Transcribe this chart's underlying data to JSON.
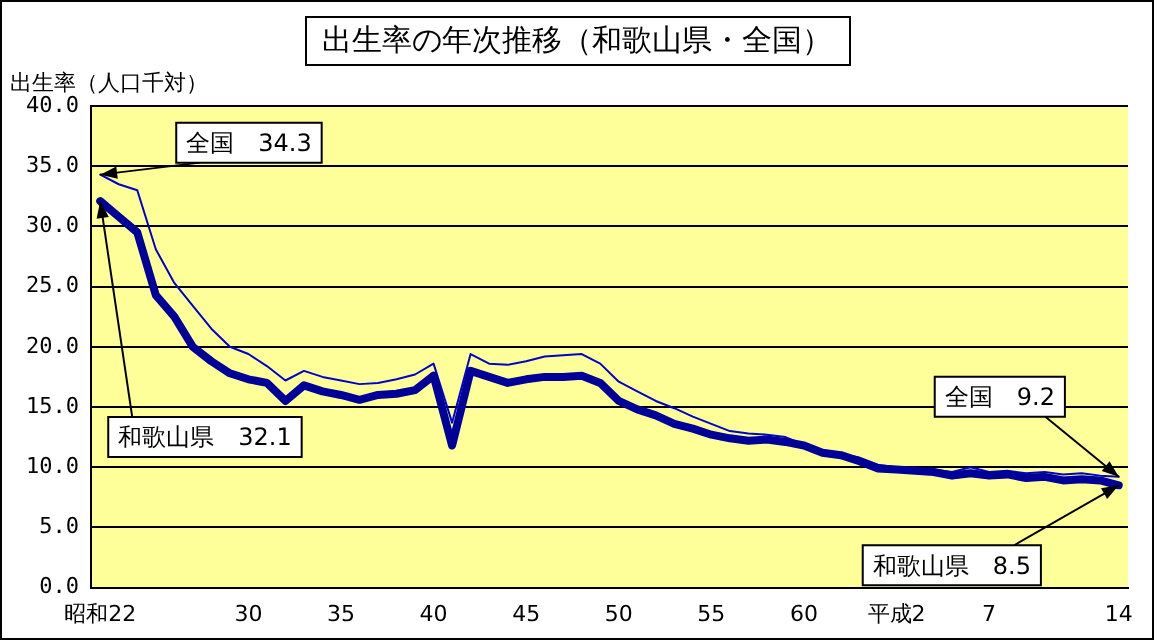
{
  "chart_data": {
    "type": "line",
    "title": "出生率の年次推移（和歌山県・全国）",
    "ylabel": "出生率（人口千対）",
    "categories": [
      "昭和22",
      null,
      null,
      null,
      null,
      null,
      null,
      null,
      "30",
      null,
      null,
      null,
      null,
      "35",
      null,
      null,
      null,
      null,
      "40",
      null,
      null,
      null,
      null,
      "45",
      null,
      null,
      null,
      null,
      "50",
      null,
      null,
      null,
      null,
      "55",
      null,
      null,
      null,
      null,
      "60",
      null,
      null,
      null,
      null,
      "平成2",
      null,
      null,
      null,
      null,
      "7",
      null,
      null,
      null,
      null,
      null,
      null,
      "14"
    ],
    "series": [
      {
        "color": "#0000cc",
        "values": [
          34.3,
          33.5,
          33.0,
          28.1,
          25.3,
          23.4,
          21.5,
          20.0,
          19.4,
          18.4,
          17.2,
          18.0,
          17.5,
          17.2,
          16.9,
          17.0,
          17.3,
          17.7,
          18.6,
          13.7,
          19.4,
          18.6,
          18.5,
          18.8,
          19.2,
          19.3,
          19.4,
          18.6,
          17.1,
          16.3,
          15.5,
          14.9,
          14.2,
          13.6,
          13.0,
          12.8,
          12.7,
          12.5,
          11.9,
          11.4,
          11.1,
          10.8,
          10.2,
          10.0,
          9.9,
          9.8,
          9.6,
          10.0,
          9.6,
          9.7,
          9.5,
          9.6,
          9.4,
          9.5,
          9.3,
          9.2
        ]
      },
      {
        "color": "#000099",
        "values": [
          32.1,
          30.8,
          29.5,
          24.3,
          22.5,
          20.0,
          18.8,
          17.8,
          17.3,
          17.0,
          15.5,
          16.8,
          16.3,
          16.0,
          15.6,
          16.0,
          16.1,
          16.4,
          17.6,
          11.8,
          18.0,
          17.5,
          17.0,
          17.3,
          17.5,
          17.5,
          17.6,
          17.0,
          15.5,
          14.8,
          14.3,
          13.6,
          13.2,
          12.7,
          12.4,
          12.2,
          12.3,
          12.1,
          11.8,
          11.2,
          11.0,
          10.5,
          9.9,
          9.8,
          9.7,
          9.6,
          9.3,
          9.5,
          9.3,
          9.4,
          9.1,
          9.2,
          8.9,
          9.0,
          8.9,
          8.5
        ]
      }
    ],
    "ylim": [
      0,
      40
    ],
    "yticks": [
      {
        "value": 0,
        "label": "0.0"
      },
      {
        "value": 5,
        "label": "5.0"
      },
      {
        "value": 10,
        "label": "10.0"
      },
      {
        "value": 15,
        "label": "15.0"
      },
      {
        "value": 20,
        "label": "20.0"
      },
      {
        "value": 25,
        "label": "25.0"
      },
      {
        "value": 30,
        "label": "30.0"
      },
      {
        "value": 35,
        "label": "35.0"
      },
      {
        "value": 40,
        "label": "40.0"
      }
    ],
    "grid": "y",
    "marker": "none",
    "line_style": "solid",
    "legend": false,
    "annotations": [
      {
        "text": "全国　34.3",
        "x": "昭和22",
        "y": 34.3
      },
      {
        "text": "和歌山県　32.1",
        "x": "昭和22",
        "y": 32.1
      },
      {
        "text": "全国　9.2",
        "x": "14",
        "y": 9.2
      },
      {
        "text": "和歌山県　8.5",
        "x": "14",
        "y": 8.5
      }
    ]
  }
}
